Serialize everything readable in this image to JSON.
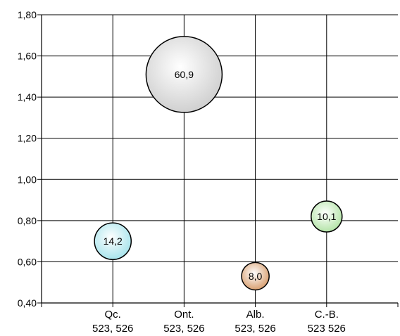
{
  "chart_data": {
    "type": "bubble",
    "title": "",
    "xlabel": "",
    "ylabel": "",
    "ylim": [
      0.4,
      1.8
    ],
    "y_ticks": [
      "0,40",
      "0,60",
      "0,80",
      "1,00",
      "1,20",
      "1,40",
      "1,60",
      "1,80"
    ],
    "grid": true,
    "categories": [
      {
        "name": "Qc.",
        "sub": "523, 526"
      },
      {
        "name": "Ont.",
        "sub": "523, 526"
      },
      {
        "name": "Alb.",
        "sub": "523, 526"
      },
      {
        "name": "C.-B.",
        "sub": "523 526"
      }
    ],
    "points": [
      {
        "category": "Qc.",
        "y": 0.7,
        "size": 14.2,
        "label": "14,2",
        "color": "#a8e4ec"
      },
      {
        "category": "Ont.",
        "y": 1.51,
        "size": 60.9,
        "label": "60,9",
        "color": "#d0d0d0"
      },
      {
        "category": "Alb.",
        "y": 0.53,
        "size": 8.0,
        "label": "8,0",
        "color": "#d9a071"
      },
      {
        "category": "C.-B.",
        "y": 0.82,
        "size": 10.1,
        "label": "10,1",
        "color": "#b4e4a8"
      }
    ]
  }
}
